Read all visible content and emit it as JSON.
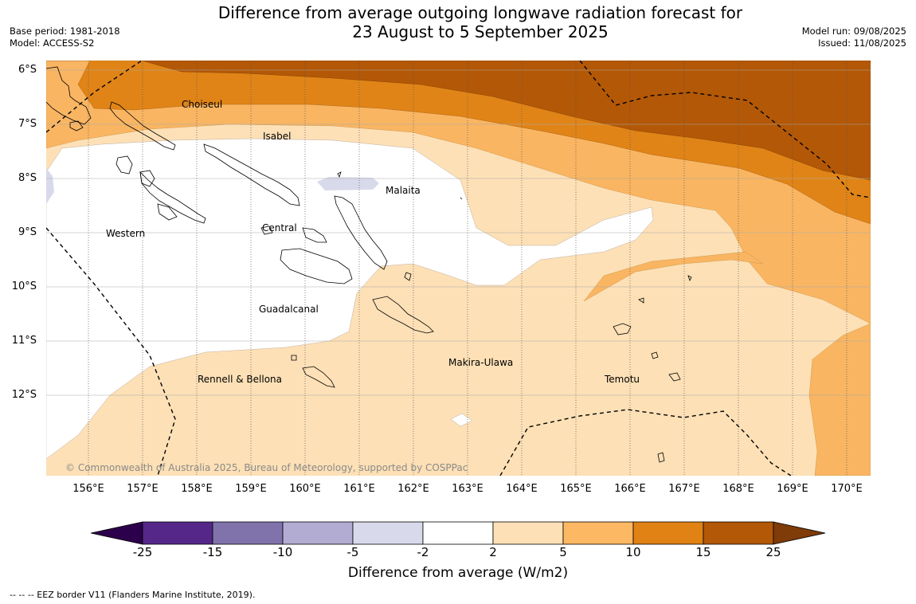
{
  "header": {
    "title_line1": "Difference from average outgoing longwave radiation forecast for",
    "title_line2": "23 August to 5 September 2025",
    "base_period": "Base period: 1981-2018",
    "model": "Model: ACCESS-S2",
    "model_run": "Model run: 09/08/2025",
    "issued": "Issued: 11/08/2025"
  },
  "map": {
    "lat_labels": [
      "6°S",
      "7°S",
      "8°S",
      "9°S",
      "10°S",
      "11°S",
      "12°S"
    ],
    "lon_labels": [
      "156°E",
      "157°E",
      "158°E",
      "159°E",
      "160°E",
      "161°E",
      "162°E",
      "163°E",
      "164°E",
      "165°E",
      "166°E",
      "167°E",
      "168°E",
      "169°E",
      "170°E"
    ],
    "places": {
      "choiseul": "Choiseul",
      "isabel": "Isabel",
      "malaita": "Malaita",
      "western": "Western",
      "central": "Central",
      "guadalcanal": "Guadalcanal",
      "rennell": "Rennell & Bellona",
      "makira": "Makira-Ulawa",
      "temotu": "Temotu"
    },
    "copyright": "© Commonwealth of Australia 2025, Bureau of Meteorology, supported by COSPPac",
    "colors": {
      "band_2_5": "#fde0b6",
      "band_5_10": "#f9b562",
      "band_10_15": "#e08417",
      "band_15_25": "#b35806",
      "band_m5_m2": "#d8daeb",
      "band_m2_2": "#ffffff"
    }
  },
  "colorbar": {
    "ticks": [
      "-25",
      "-15",
      "-10",
      "-5",
      "-2",
      "2",
      "5",
      "10",
      "15",
      "25"
    ],
    "colors": [
      "#542788",
      "#8073ac",
      "#b2abd2",
      "#d8daeb",
      "#ffffff",
      "#fee0b6",
      "#fdb863",
      "#e08214",
      "#b35806"
    ],
    "extend_low_color": "#2d004b",
    "extend_high_color": "#7f3b08",
    "label": "Difference from average (W/m2)"
  },
  "footer": {
    "eez_note": "--  --  -- EEZ border V11 (Flanders Marine Institute, 2019)."
  }
}
